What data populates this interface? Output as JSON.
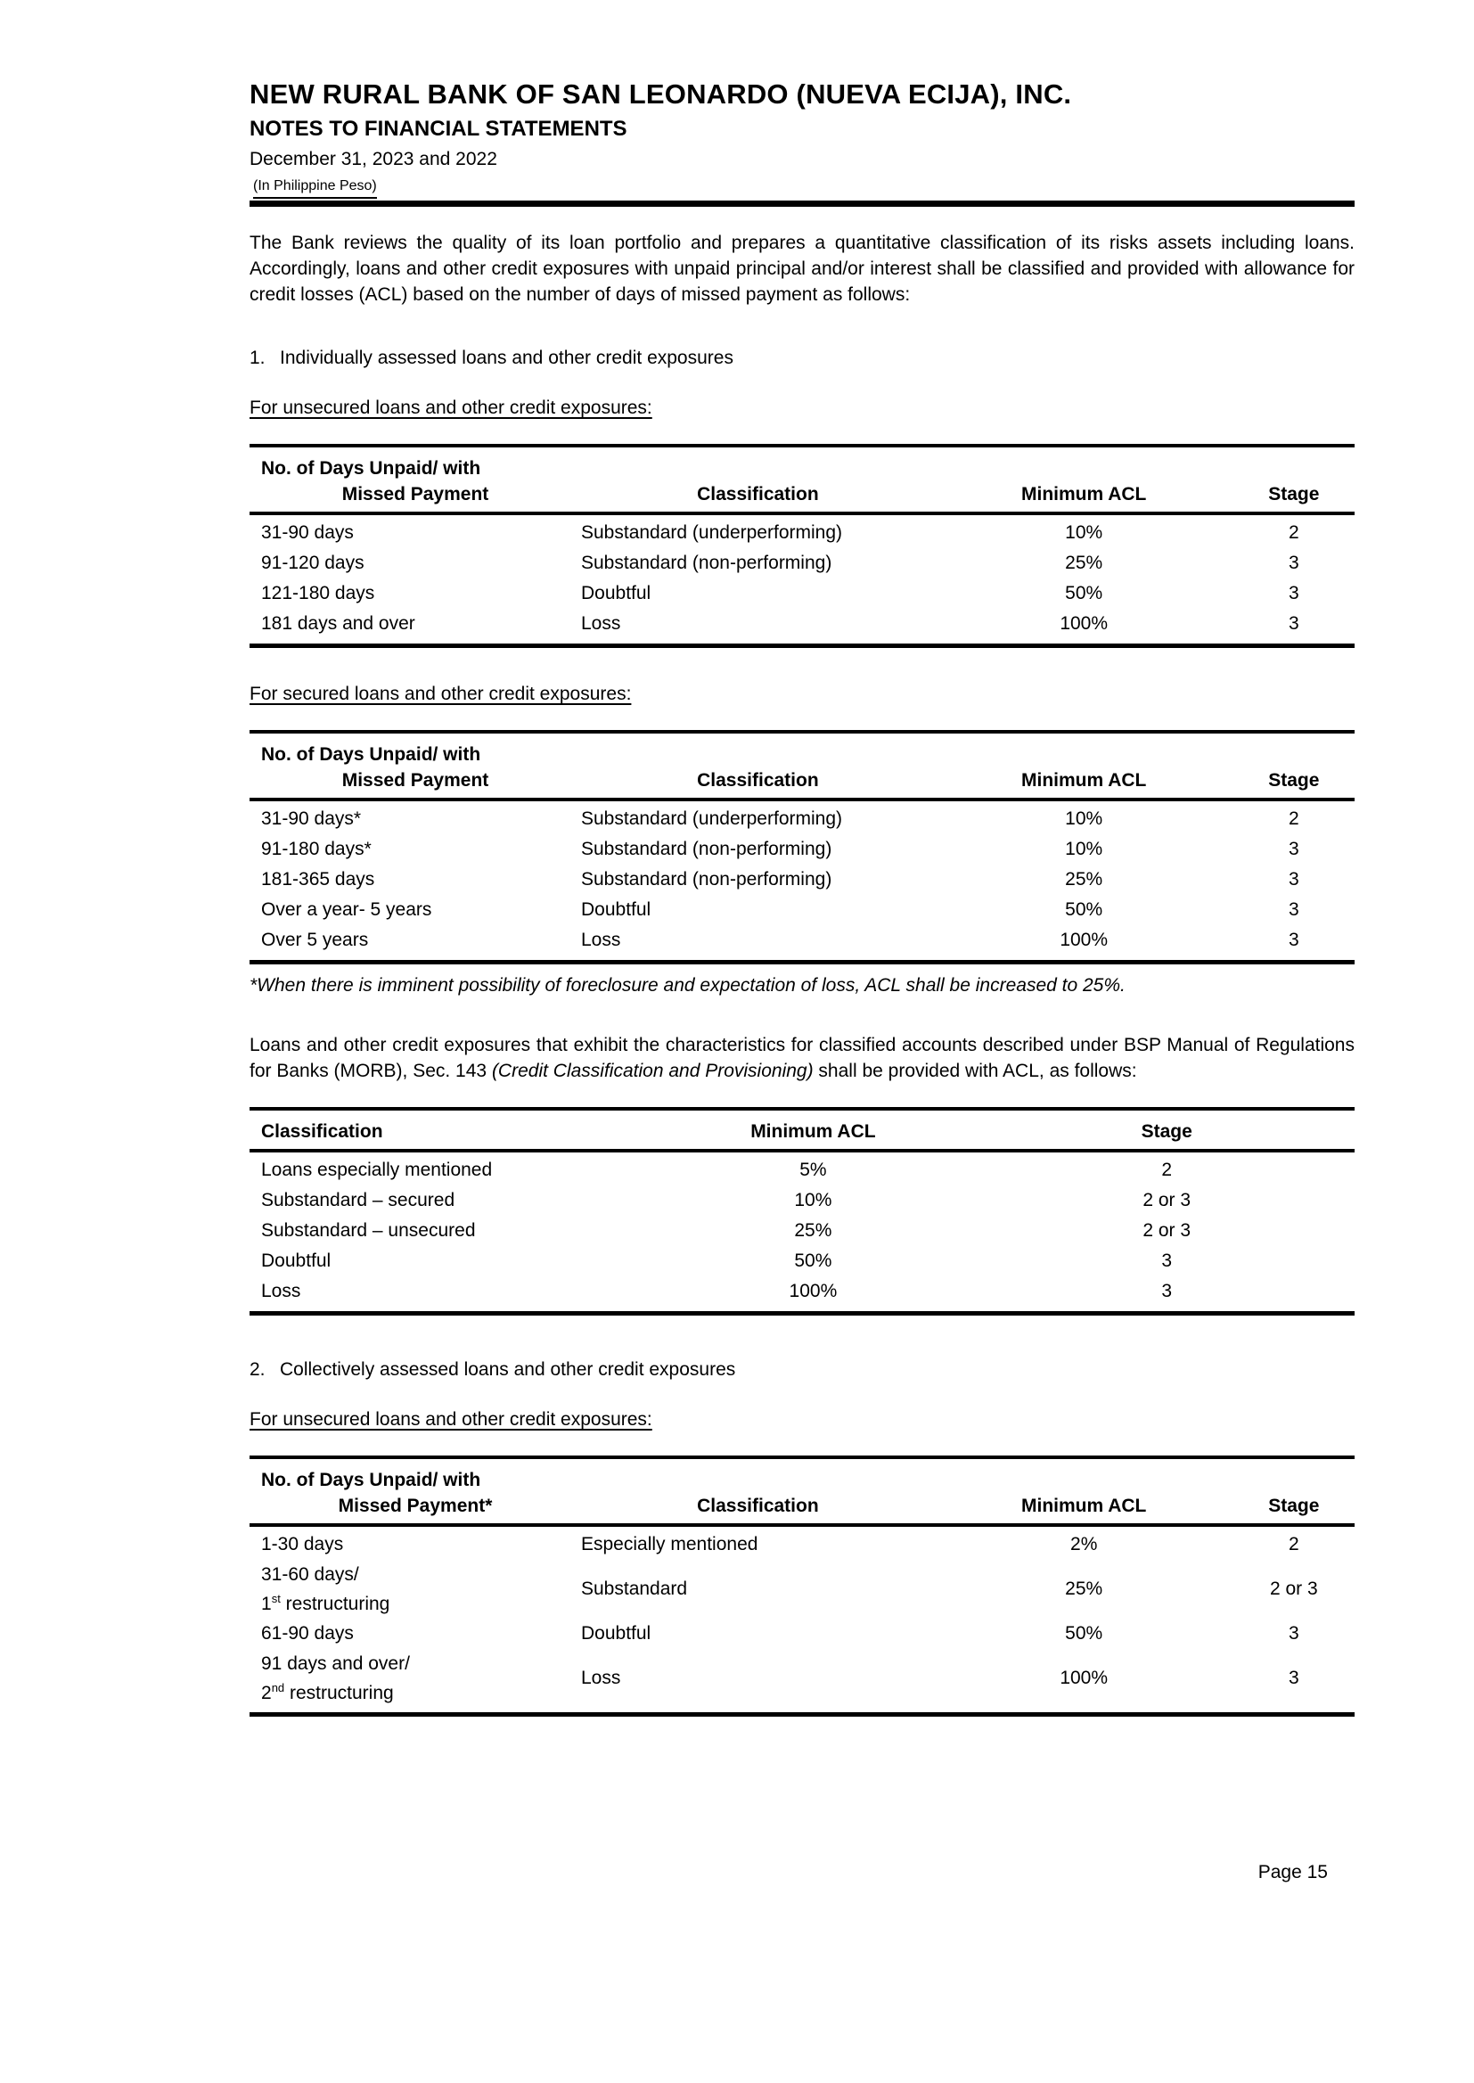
{
  "header": {
    "bank_name": "NEW RURAL BANK OF SAN LEONARDO (NUEVA ECIJA), INC.",
    "doc_title": "NOTES TO FINANCIAL STATEMENTS",
    "date_line": "December 31, 2023 and 2022",
    "currency_note": "(In Philippine Peso)"
  },
  "body": {
    "intro_paragraph": "The Bank reviews the quality of its loan portfolio and prepares a quantitative classification of its risks assets including loans. Accordingly, loans and other credit exposures with unpaid principal and/or interest shall be classified and provided with allowance for credit losses (ACL) based on the number of days of missed payment as follows:",
    "section1": {
      "num": "1.",
      "text": "Individually assessed loans and other credit exposures"
    },
    "unsecured_heading1": "For unsecured loans and other credit exposures:",
    "secured_heading": "For secured loans and other credit exposures:",
    "footnote": "*When there is imminent possibility of foreclosure and expectation of loss, ACL shall be increased to 25%.",
    "morb_paragraph": {
      "part1": "Loans and other credit exposures that exhibit the characteristics for classified accounts described under BSP Manual of Regulations for Banks (MORB), Sec. 143 ",
      "italic": "(Credit Classification and Provisioning)",
      "part2": " shall be provided with ACL, as follows:"
    },
    "section2": {
      "num": "2.",
      "text": "Collectively assessed loans and other credit exposures"
    },
    "unsecured_heading2": "For unsecured loans and other credit exposures:"
  },
  "tables": {
    "unsecured_individual": {
      "headers": {
        "days_line1": "No. of Days Unpaid/ with",
        "days_line2": "Missed Payment",
        "classification": "Classification",
        "acl": "Minimum ACL",
        "stage": "Stage"
      },
      "rows": [
        {
          "days": "31-90 days",
          "classification": "Substandard (underperforming)",
          "acl": "10%",
          "stage": "2"
        },
        {
          "days": "91-120 days",
          "classification": "Substandard (non-performing)",
          "acl": "25%",
          "stage": "3"
        },
        {
          "days": "121-180 days",
          "classification": "Doubtful",
          "acl": "50%",
          "stage": "3"
        },
        {
          "days": "181 days and over",
          "classification": "Loss",
          "acl": "100%",
          "stage": "3"
        }
      ]
    },
    "secured_individual": {
      "headers": {
        "days_line1": "No. of Days Unpaid/ with",
        "days_line2": "Missed Payment",
        "classification": "Classification",
        "acl": "Minimum ACL",
        "stage": "Stage"
      },
      "rows": [
        {
          "days": "31-90 days*",
          "classification": "Substandard (underperforming)",
          "acl": "10%",
          "stage": "2"
        },
        {
          "days": "91-180 days*",
          "classification": "Substandard (non-performing)",
          "acl": "10%",
          "stage": "3"
        },
        {
          "days": "181-365 days",
          "classification": "Substandard (non-performing)",
          "acl": "25%",
          "stage": "3"
        },
        {
          "days": "Over a year- 5 years",
          "classification": "Doubtful",
          "acl": "50%",
          "stage": "3"
        },
        {
          "days": "Over 5 years",
          "classification": "Loss",
          "acl": "100%",
          "stage": "3"
        }
      ]
    },
    "classification_acl": {
      "headers": {
        "classification": "Classification",
        "acl": "Minimum ACL",
        "stage": "Stage"
      },
      "rows": [
        {
          "classification": "Loans especially mentioned",
          "acl": "5%",
          "stage": "2"
        },
        {
          "classification": "Substandard – secured",
          "acl": "10%",
          "stage": "2 or 3"
        },
        {
          "classification": "Substandard – unsecured",
          "acl": "25%",
          "stage": "2 or 3"
        },
        {
          "classification": "Doubtful",
          "acl": "50%",
          "stage": "3"
        },
        {
          "classification": "Loss",
          "acl": "100%",
          "stage": "3"
        }
      ]
    },
    "unsecured_collective": {
      "headers": {
        "days_line1": "No. of Days Unpaid/ with",
        "days_line2": "Missed Payment*",
        "classification": "Classification",
        "acl": "Minimum ACL",
        "stage": "Stage"
      },
      "rows": [
        {
          "days_line1": "1-30 days",
          "classification": "Especially mentioned",
          "acl": "2%",
          "stage": "2"
        },
        {
          "days_line1": "31-60 days/",
          "days_line2": {
            "pre": "1",
            "sup": "st",
            "post": " restructuring"
          },
          "classification": "Substandard",
          "acl": "25%",
          "stage": "2 or 3"
        },
        {
          "days_line1": "61-90 days",
          "classification": "Doubtful",
          "acl": "50%",
          "stage": "3"
        },
        {
          "days_line1": "91 days and over/",
          "days_line2": {
            "pre": "2",
            "sup": "nd",
            "post": " restructuring"
          },
          "classification": "Loss",
          "acl": "100%",
          "stage": "3"
        }
      ]
    }
  },
  "footer": {
    "page_label": "Page 15"
  }
}
